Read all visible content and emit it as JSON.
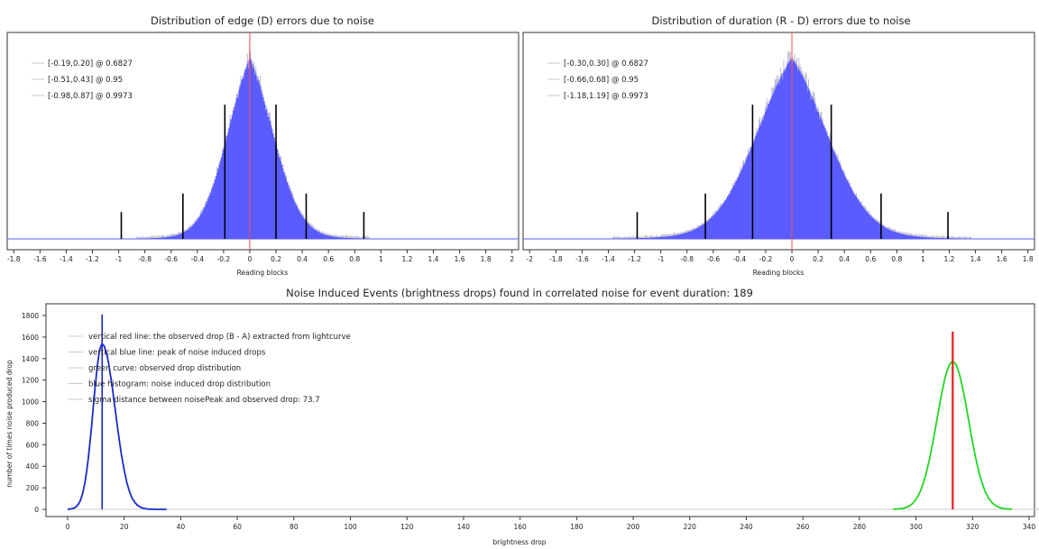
{
  "chart_data": [
    {
      "type": "histogram",
      "title": "Distribution of edge (D) errors due to noise",
      "xlabel": "Reading blocks",
      "xlim": [
        -1.85,
        2.05
      ],
      "xticks": [
        -1.8,
        -1.6,
        -1.4,
        -1.2,
        -1,
        -0.8,
        -0.6,
        -0.4,
        -0.2,
        0,
        0.2,
        0.4,
        0.6,
        0.8,
        1,
        1.2,
        1.4,
        1.6,
        1.8,
        2
      ],
      "grid": false,
      "legend_placement": "top-left",
      "distribution": {
        "center": 0.0,
        "left_sigma": 0.19,
        "right_sigma": 0.2,
        "peak_fraction": 0.88
      },
      "confidence_lines": [
        {
          "label": "[-0.19,0.20] @ 0.6827",
          "low": -0.19,
          "high": 0.2,
          "height_fraction": 0.65
        },
        {
          "label": "[-0.51,0.43] @ 0.95",
          "low": -0.51,
          "high": 0.43,
          "height_fraction": 0.22
        },
        {
          "label": "[-0.98,0.87] @ 0.9973",
          "low": -0.98,
          "high": 0.87,
          "height_fraction": 0.13
        }
      ],
      "center_line": {
        "x": 0,
        "color": "#ff4d4d"
      },
      "colors": {
        "bars": "#5a5cff",
        "edges": "#a8a8c8",
        "conf_lines": "#000000"
      }
    },
    {
      "type": "histogram",
      "title": "Distribution of duration (R - D) errors due to noise",
      "xlabel": "Reading blocks",
      "xlim": [
        -2.05,
        1.85
      ],
      "xticks": [
        -2,
        -1.8,
        -1.6,
        -1.4,
        -1.2,
        -1,
        -0.8,
        -0.6,
        -0.4,
        -0.2,
        0,
        0.2,
        0.4,
        0.6,
        0.8,
        1,
        1.2,
        1.4,
        1.6,
        1.8
      ],
      "grid": false,
      "legend_placement": "top-left",
      "distribution": {
        "center": 0.0,
        "left_sigma": 0.3,
        "right_sigma": 0.3,
        "peak_fraction": 0.88
      },
      "confidence_lines": [
        {
          "label": "[-0.30,0.30] @ 0.6827",
          "low": -0.3,
          "high": 0.3,
          "height_fraction": 0.65
        },
        {
          "label": "[-0.66,0.68] @ 0.95",
          "low": -0.66,
          "high": 0.68,
          "height_fraction": 0.22
        },
        {
          "label": "[-1.18,1.19] @ 0.9973",
          "low": -1.18,
          "high": 1.19,
          "height_fraction": 0.13
        }
      ],
      "center_line": {
        "x": 0,
        "color": "#ff4d4d"
      },
      "colors": {
        "bars": "#5a5cff",
        "edges": "#a8a8c8",
        "conf_lines": "#000000"
      }
    },
    {
      "type": "line",
      "title": "Noise Induced Events (brightness drops) found in correlated noise for event duration: 189",
      "xlabel": "brightness drop",
      "ylabel": "number of times noise produced drop",
      "xlim": [
        -3,
        345
      ],
      "ylim": [
        -50,
        1820
      ],
      "xticks": [
        0,
        20,
        40,
        60,
        80,
        100,
        120,
        140,
        160,
        180,
        200,
        220,
        240,
        260,
        280,
        300,
        320,
        340
      ],
      "yticks": [
        0,
        200,
        400,
        600,
        800,
        1000,
        1200,
        1400,
        1600,
        1800
      ],
      "grid": false,
      "legend_placement": "top-left",
      "legend": [
        "vertical red line: the observed drop (B - A) extracted from lightcurve",
        "vertical blue line: peak of noise induced drops",
        "green curve: observed drop distribution",
        "blue histogram: noise induced drop distribution",
        "sigma distance between noisePeak and observed drop: 73.7"
      ],
      "series": [
        {
          "name": "blue histogram: noise induced drop distribution",
          "kind": "skewed-peak",
          "start": 0,
          "peak_x": 12.2,
          "peak_y": 1530,
          "end": 35,
          "color": "#1a2bc8"
        },
        {
          "name": "green curve: observed drop distribution",
          "kind": "gaussian",
          "mean": 313,
          "sigma": 5.6,
          "peak_y": 1370,
          "start": 292,
          "end": 334,
          "color": "#22d622"
        }
      ],
      "vlines": [
        {
          "name": "vertical blue line: peak of noise induced drops",
          "x": 12.2,
          "y_top": 1810,
          "color": "#1a2bc8"
        },
        {
          "name": "vertical red line: the observed drop (B - A) extracted from lightcurve",
          "x": 313,
          "y_top": 1650,
          "color": "#e01c1c"
        }
      ]
    }
  ]
}
